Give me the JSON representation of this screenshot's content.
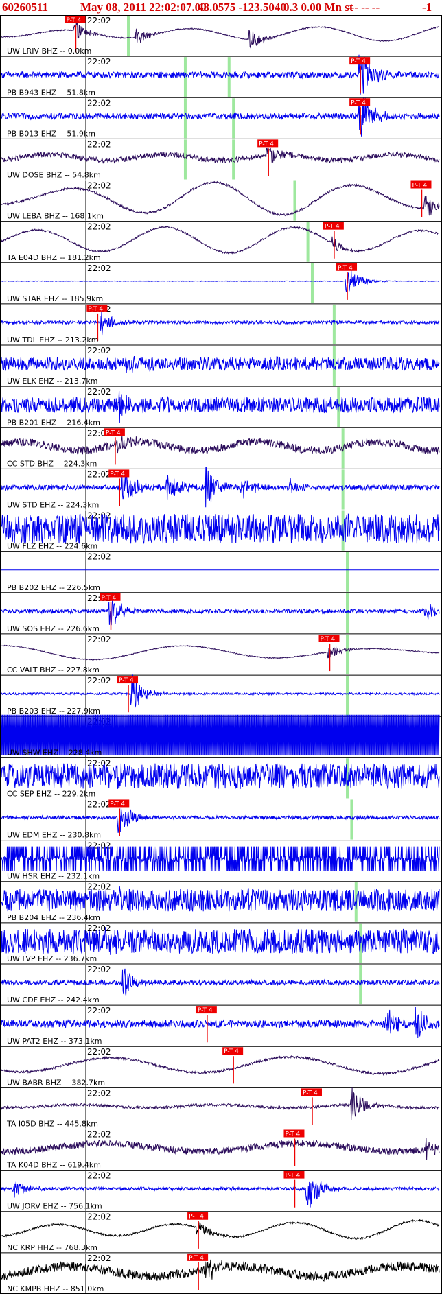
{
  "header": {
    "event_id": "60260511",
    "datetime": "May 08, 2011 22:02:07.00",
    "location": "48.0575 -123.5040",
    "magnitude": "0.3 0.00 Mn st",
    "placeholder": "--- -- --",
    "code": "-1"
  },
  "chart_data": {
    "type": "line",
    "title": "60260511 May 08, 2011 22:02:07.00 48.0575 -123.5040 0.3 0.00 Mn st --- -- -- -1",
    "time_tick_label": "22:02",
    "pick_label": "P-T 4",
    "colors": {
      "trace_blue": "#0000ee",
      "trace_purple": "#2a0b5a",
      "trace_black": "#000000",
      "pick_red": "#ee0000",
      "marker_green": "#9ee89e",
      "header_red": "#d40000"
    },
    "series": [
      {
        "name": "UW LRIV BHZ -- 0.0km",
        "color": "purple",
        "style": "lp",
        "amp": 0.35,
        "pick": 0.17,
        "green": 0.29,
        "bursts": [
          [
            0.17,
            0.9
          ],
          [
            0.31,
            0.8
          ],
          [
            0.57,
            1.0
          ]
        ]
      },
      {
        "name": "PB B943 EHZ -- 51.8km",
        "color": "blue",
        "style": "noise",
        "amp": 0.15,
        "pick": 0.82,
        "green": 0.52,
        "green2": 0.42,
        "bursts": [
          [
            0.82,
            2.6
          ]
        ]
      },
      {
        "name": "PB B013 EHZ -- 51.9km",
        "color": "blue",
        "style": "noise",
        "amp": 0.15,
        "pick": 0.82,
        "green": 0.53,
        "green2": 0.42,
        "bursts": [
          [
            0.82,
            2.6
          ]
        ]
      },
      {
        "name": "UW DOSE BHZ -- 54.8km",
        "color": "purple",
        "style": "mixed",
        "amp": 0.28,
        "pick": 0.61,
        "green": 0.53,
        "green2": 0.42,
        "bursts": [
          [
            0.61,
            1.0
          ]
        ]
      },
      {
        "name": "UW LEBA BHZ -- 168.1km",
        "color": "purple",
        "style": "lp",
        "amp": 0.7,
        "pick": 0.96,
        "green": 0.67,
        "bursts": [
          [
            0.97,
            1.2
          ]
        ]
      },
      {
        "name": "TA E04D BHZ -- 181.2km",
        "color": "purple",
        "style": "lp",
        "amp": 0.55,
        "pick": 0.76,
        "green": 0.7,
        "bursts": [
          [
            0.76,
            0.6
          ]
        ]
      },
      {
        "name": "UW STAR EHZ -- 185.9km",
        "color": "blue",
        "style": "quiet",
        "amp": 0.03,
        "pick": 0.79,
        "green": 0.71,
        "bursts": [
          [
            0.79,
            1.5
          ]
        ]
      },
      {
        "name": "UW TDL EHZ -- 213.2km",
        "color": "blue",
        "style": "noise",
        "amp": 0.08,
        "pick": 0.22,
        "green": 0.76,
        "bursts": [
          [
            0.23,
            1.4
          ]
        ]
      },
      {
        "name": "UW ELK EHZ -- 213.7km",
        "color": "blue",
        "style": "noise",
        "amp": 0.32,
        "pick": null,
        "green": 0.76,
        "bursts": [
          [
            0.29,
            1.0
          ]
        ]
      },
      {
        "name": "PB B201 EHZ -- 216.4km",
        "color": "blue",
        "style": "noise",
        "amp": 0.38,
        "pick": null,
        "green": 0.77,
        "bursts": [
          [
            0.27,
            1.4
          ]
        ]
      },
      {
        "name": "CC STD BHZ -- 224.3km",
        "color": "purple",
        "style": "mixed",
        "amp": 0.42,
        "pick": 0.26,
        "green": 0.78,
        "bursts": [
          [
            0.27,
            0.9
          ]
        ]
      },
      {
        "name": "UW STD EHZ -- 224.3km",
        "color": "blue",
        "style": "noise",
        "amp": 0.12,
        "pick": 0.27,
        "green": 0.78,
        "bursts": [
          [
            0.28,
            2.0
          ],
          [
            0.38,
            1.6
          ],
          [
            0.47,
            2.2
          ],
          [
            0.55,
            1.0
          ],
          [
            0.66,
            0.8
          ]
        ]
      },
      {
        "name": "UW FLZ EHZ -- 224.6km",
        "color": "blue",
        "style": "noise",
        "amp": 0.72,
        "pick": null,
        "green": 0.78,
        "bursts": []
      },
      {
        "name": "PB B202 EHZ -- 226.5km",
        "color": "blue",
        "style": "flat",
        "amp": 0,
        "pick": null,
        "green": 0.79,
        "bursts": []
      },
      {
        "name": "UW SOS EHZ -- 226.6km",
        "color": "blue",
        "style": "noise",
        "amp": 0.1,
        "pick": 0.25,
        "green": 0.79,
        "bursts": [
          [
            0.25,
            1.6
          ],
          [
            0.97,
            0.8
          ]
        ]
      },
      {
        "name": "CC VALT BHZ -- 227.8km",
        "color": "purple",
        "style": "lp",
        "amp": 0.3,
        "pick": 0.75,
        "green": 0.79,
        "bursts": [
          [
            0.75,
            0.7
          ]
        ]
      },
      {
        "name": "PB B203 EHZ -- 227.9km",
        "color": "blue",
        "style": "noise",
        "amp": 0.05,
        "pick": 0.29,
        "green": 0.79,
        "bursts": [
          [
            0.3,
            1.8
          ]
        ]
      },
      {
        "name": "UW SHW EHZ -- 228.4km",
        "color": "blue",
        "style": "saturated",
        "amp": 1.0,
        "pick": null,
        "green": null,
        "bursts": []
      },
      {
        "name": "CC SEP EHZ -- 229.2km",
        "color": "blue",
        "style": "noise",
        "amp": 0.62,
        "pick": null,
        "green": 0.79,
        "bursts": []
      },
      {
        "name": "UW EDM EHZ -- 230.8km",
        "color": "blue",
        "style": "noise",
        "amp": 0.08,
        "pick": 0.27,
        "green": 0.8,
        "bursts": [
          [
            0.27,
            1.8
          ]
        ]
      },
      {
        "name": "UW HSR EHZ -- 232.1km",
        "color": "blue",
        "style": "spikes",
        "amp": 0.6,
        "pick": null,
        "green": null,
        "bursts": []
      },
      {
        "name": "PB B204 EHZ -- 236.4km",
        "color": "blue",
        "style": "noise",
        "amp": 0.55,
        "pick": null,
        "green": 0.81,
        "bursts": [
          [
            0.27,
            0.6
          ]
        ]
      },
      {
        "name": "UW LVP EHZ -- 236.7km",
        "color": "blue",
        "style": "noise",
        "amp": 0.6,
        "pick": null,
        "green": 0.82,
        "bursts": [
          [
            0.24,
            0.6
          ]
        ]
      },
      {
        "name": "UW CDF EHZ -- 242.4km",
        "color": "blue",
        "style": "noise",
        "amp": 0.12,
        "pick": null,
        "green": 0.82,
        "bursts": [
          [
            0.28,
            1.6
          ]
        ]
      },
      {
        "name": "UW PAT2 EHZ -- 373.1km",
        "color": "blue",
        "style": "noise",
        "amp": 0.18,
        "pick": 0.47,
        "green": null,
        "bursts": [
          [
            0.88,
            1.4
          ],
          [
            0.95,
            1.5
          ]
        ]
      },
      {
        "name": "UW BABR BHZ -- 382.7km",
        "color": "purple",
        "style": "lp",
        "amp": 0.75,
        "pick": 0.53,
        "green": null,
        "bursts": []
      },
      {
        "name": "TA I05D BHZ -- 445.8km",
        "color": "purple",
        "style": "mixed",
        "amp": 0.15,
        "pick": 0.71,
        "green": null,
        "bursts": [
          [
            0.8,
            1.8
          ]
        ]
      },
      {
        "name": "TA K04D BHZ -- 619.4km",
        "color": "purple",
        "style": "mixed",
        "amp": 0.38,
        "pick": 0.67,
        "green": null,
        "bursts": [
          [
            0.97,
            1.0
          ]
        ]
      },
      {
        "name": "UW JORV EHZ -- 756.1km",
        "color": "blue",
        "style": "noise",
        "amp": 0.08,
        "pick": 0.67,
        "green": null,
        "bursts": [
          [
            0.03,
            1.0
          ],
          [
            0.7,
            2.2
          ]
        ]
      },
      {
        "name": "NC KRP HHZ -- 768.3km",
        "color": "black",
        "style": "lp",
        "amp": 0.6,
        "pick": 0.45,
        "green": null,
        "bursts": [
          [
            0.45,
            0.8
          ]
        ]
      },
      {
        "name": "NC KMPB HHZ -- 851.0km",
        "color": "black",
        "style": "mixed",
        "amp": 0.5,
        "pick": 0.45,
        "green": null,
        "bursts": [
          [
            0.47,
            1.2
          ]
        ]
      }
    ],
    "grid": false,
    "legend": "none"
  }
}
